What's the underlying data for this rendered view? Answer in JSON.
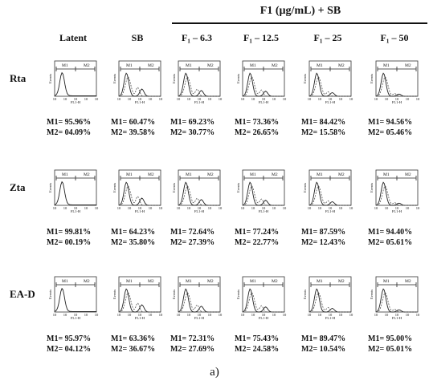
{
  "group_header": "F1 (µg/mL) + SB",
  "columns": [
    {
      "label": "Latent"
    },
    {
      "label": "SB"
    },
    {
      "label": "F₁ – 6.3"
    },
    {
      "label": "F₁ – 12.5"
    },
    {
      "label": "F₁ – 25"
    },
    {
      "label": "F₁ – 50"
    }
  ],
  "rows": [
    {
      "label": "Rta",
      "stats": [
        [
          "M1= 95.96%",
          "M2= 04.09%"
        ],
        [
          "M1= 60.47%",
          "M2= 39.58%"
        ],
        [
          "M1= 69.23%",
          "M2= 30.77%"
        ],
        [
          "M1= 73.36%",
          "M2= 26.65%"
        ],
        [
          "M1= 84.42%",
          "M2= 15.58%"
        ],
        [
          "M1= 94.56%",
          "M2= 05.46%"
        ]
      ]
    },
    {
      "label": "Zta",
      "stats": [
        [
          "M1= 99.81%",
          "M2= 00.19%"
        ],
        [
          "M1= 64.23%",
          "M2= 35.80%"
        ],
        [
          "M1= 72.64%",
          "M2= 27.39%"
        ],
        [
          "M1= 77.24%",
          "M2= 22.77%"
        ],
        [
          "M1= 87.59%",
          "M2= 12.43%"
        ],
        [
          "M1= 94.40%",
          "M2= 05.61%"
        ]
      ]
    },
    {
      "label": "EA-D",
      "stats": [
        [
          "M1= 95.97%",
          "M2= 04.12%"
        ],
        [
          "M1= 63.36%",
          "M2= 36.67%"
        ],
        [
          "M1= 72.31%",
          "M2= 27.69%"
        ],
        [
          "M1= 75.43%",
          "M2= 24.58%"
        ],
        [
          "M1= 89.47%",
          "M2= 10.54%"
        ],
        [
          "M1= 95.00%",
          "M2= 05.01%"
        ]
      ]
    }
  ],
  "plot": {
    "gate1_label": "M1",
    "gate2_label": "M2",
    "y_axis_label": "Events",
    "x_axis_label": "FL1-H",
    "x_ticks": [
      "10",
      "10",
      "10",
      "10",
      "10"
    ]
  },
  "caption": "a)",
  "colors": {
    "line": "#222222",
    "dashed": "#555555"
  }
}
